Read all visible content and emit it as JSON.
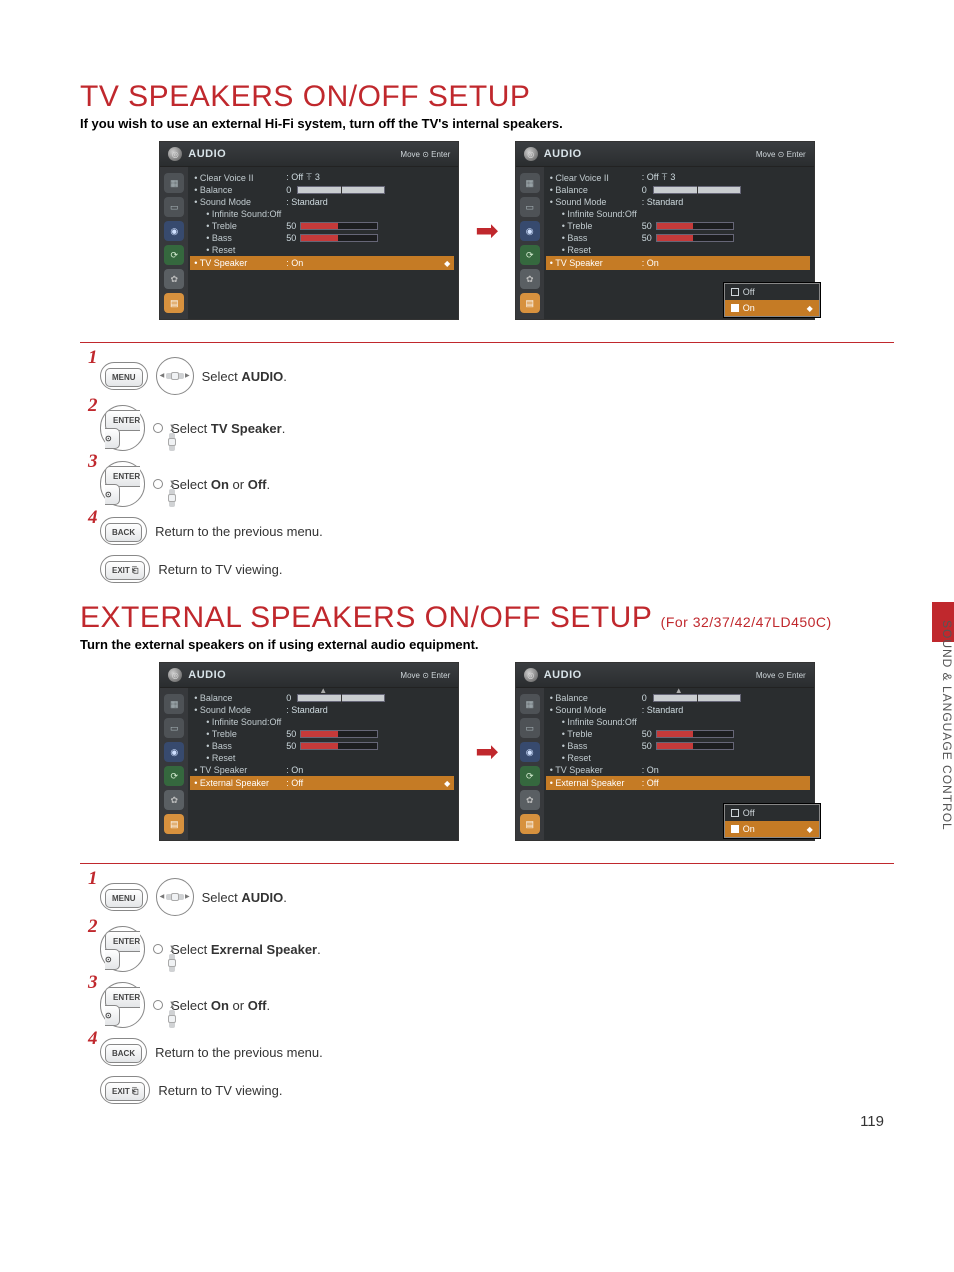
{
  "section1": {
    "heading": "TV SPEAKERS ON/OFF SETUP",
    "subhead": "If you wish to use an external Hi-Fi system, turn off the TV's internal speakers.",
    "osd_title": "AUDIO",
    "osd_move_enter": "Move    ⊙ Enter",
    "panelA": {
      "rows": [
        {
          "label": "• Clear Voice II",
          "value": ": Off ꔉ 3",
          "kind": "text"
        },
        {
          "label": "• Balance",
          "value": "0",
          "kind": "balance"
        },
        {
          "label": "• Sound Mode",
          "value": ": Standard",
          "kind": "text"
        },
        {
          "label": "• Infinite Sound:Off",
          "value": "",
          "kind": "sub"
        },
        {
          "label": "• Treble",
          "value": "50",
          "kind": "bar"
        },
        {
          "label": "• Bass",
          "value": "50",
          "kind": "bar"
        },
        {
          "label": "• Reset",
          "value": "",
          "kind": "sub"
        },
        {
          "label": "• TV Speaker",
          "value": ": On",
          "kind": "hl"
        }
      ]
    },
    "panelB_popup": {
      "off": "Off",
      "on": "On"
    },
    "steps": [
      {
        "btn": "MENU",
        "pad": "lr",
        "text": "Select ",
        "bold": "AUDIO",
        "after": "."
      },
      {
        "btn": "ENTER\n⊙",
        "pad": "ud",
        "text": "Select ",
        "bold": "TV Speaker",
        "after": "."
      },
      {
        "btn": "ENTER\n⊙",
        "pad": "ud",
        "text": "Select ",
        "bold": "On",
        "mid": " or ",
        "bold2": "Off",
        "after": "."
      },
      {
        "btn": "BACK",
        "icon": "↶",
        "text": "Return to the previous menu."
      },
      {
        "btn": "EXIT ⎗",
        "text": "Return to TV viewing."
      }
    ]
  },
  "section2": {
    "heading": "EXTERNAL SPEAKERS ON/OFF SETUP",
    "model": "(For 32/37/42/47LD450C)",
    "subhead": "Turn the external speakers on if using external audio equipment.",
    "panelA": {
      "rows": [
        {
          "label": "• Balance",
          "value": "0",
          "kind": "balance"
        },
        {
          "label": "• Sound Mode",
          "value": ": Standard",
          "kind": "text"
        },
        {
          "label": "• Infinite Sound:Off",
          "value": "",
          "kind": "sub"
        },
        {
          "label": "• Treble",
          "value": "50",
          "kind": "bar"
        },
        {
          "label": "• Bass",
          "value": "50",
          "kind": "bar"
        },
        {
          "label": "• Reset",
          "value": "",
          "kind": "sub"
        },
        {
          "label": "• TV Speaker",
          "value": ": On",
          "kind": "text"
        },
        {
          "label": "• External Speaker",
          "value": ": Off",
          "kind": "hl"
        }
      ]
    },
    "steps": [
      {
        "btn": "MENU",
        "pad": "lr",
        "text": "Select ",
        "bold": "AUDIO",
        "after": "."
      },
      {
        "btn": "ENTER\n⊙",
        "pad": "ud",
        "text": "Select ",
        "bold": "Exrernal Speaker",
        "after": "."
      },
      {
        "btn": "ENTER\n⊙",
        "pad": "ud",
        "text": "Select ",
        "bold": "On",
        "mid": " or ",
        "bold2": "Off",
        "after": "."
      },
      {
        "btn": "BACK",
        "icon": "↶",
        "text": "Return to the previous menu."
      },
      {
        "btn": "EXIT ⎗",
        "text": "Return to TV viewing."
      }
    ]
  },
  "sidetext": "SOUND & LANGUAGE CONTROL",
  "pagenum": "119",
  "colors": {
    "accent": "#c0282d",
    "hl": "#c57b25",
    "panel": "#2a2d2f"
  }
}
